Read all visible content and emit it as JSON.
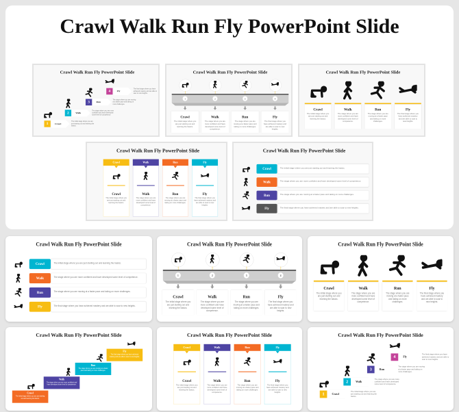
{
  "title": "Crawl Walk Run Fly PowerPoint Slide",
  "slide_title": "Crawl Walk Run Fly PowerPoint Slide",
  "stages": [
    {
      "num": "1",
      "name": "Crawl",
      "icon": "crawling-person-icon",
      "desc": "The initial stage where you are just starting out and learning the basics."
    },
    {
      "num": "2",
      "name": "Walk",
      "icon": "walking-person-icon",
      "desc": "The stage where you are more confident and have developed some level of competence."
    },
    {
      "num": "3",
      "name": "Run",
      "icon": "running-person-icon",
      "desc": "The stage where you are moving at a faster pace and taking on more challenges."
    },
    {
      "num": "4",
      "name": "Fly",
      "icon": "flying-person-icon",
      "desc": "The final stage where you have achieved mastery and are able to soar to new heights."
    }
  ],
  "colors": {
    "yellow": "#f7bd13",
    "cyan": "#00b5d1",
    "purple": "#4e44a3",
    "orange": "#f36b24",
    "pink": "#c4449a",
    "gray": "#555555"
  },
  "slides": [
    {
      "layout": "stairs-arrows",
      "palette": [
        "#f7bd13",
        "#00b5d1",
        "#4e44a3",
        "#c4449a"
      ]
    },
    {
      "layout": "timeline",
      "palette": [
        "#f7bd13",
        "#f7bd13",
        "#f7bd13",
        "#f7bd13"
      ]
    },
    {
      "layout": "figures",
      "palette": [
        "#f7bd13",
        "#f7bd13",
        "#f7bd13",
        "#f7bd13"
      ]
    },
    {
      "layout": "cards",
      "palette": [
        "#f7bd13",
        "#4e44a3",
        "#f36b24",
        "#00b5d1"
      ]
    },
    {
      "layout": "list",
      "palette": [
        "#00b5d1",
        "#f36b24",
        "#4e44a3",
        "#555555"
      ]
    },
    {
      "layout": "list",
      "palette": [
        "#00b5d1",
        "#f36b24",
        "#4e44a3",
        "#f7bd13"
      ]
    },
    {
      "layout": "timeline",
      "palette": [
        "#f7bd13",
        "#f7bd13",
        "#f7bd13",
        "#f7bd13"
      ]
    },
    {
      "layout": "figures",
      "palette": [
        "#f7bd13",
        "#f7bd13",
        "#f7bd13",
        "#f7bd13"
      ]
    },
    {
      "layout": "stairs-blocks",
      "palette": [
        "#f36b24",
        "#4e44a3",
        "#00b5d1",
        "#f7bd13"
      ]
    },
    {
      "layout": "cards",
      "palette": [
        "#f7bd13",
        "#4e44a3",
        "#f36b24",
        "#00b5d1"
      ]
    },
    {
      "layout": "stairs-arrows",
      "palette": [
        "#f7bd13",
        "#00b5d1",
        "#4e44a3",
        "#c4449a"
      ]
    }
  ]
}
